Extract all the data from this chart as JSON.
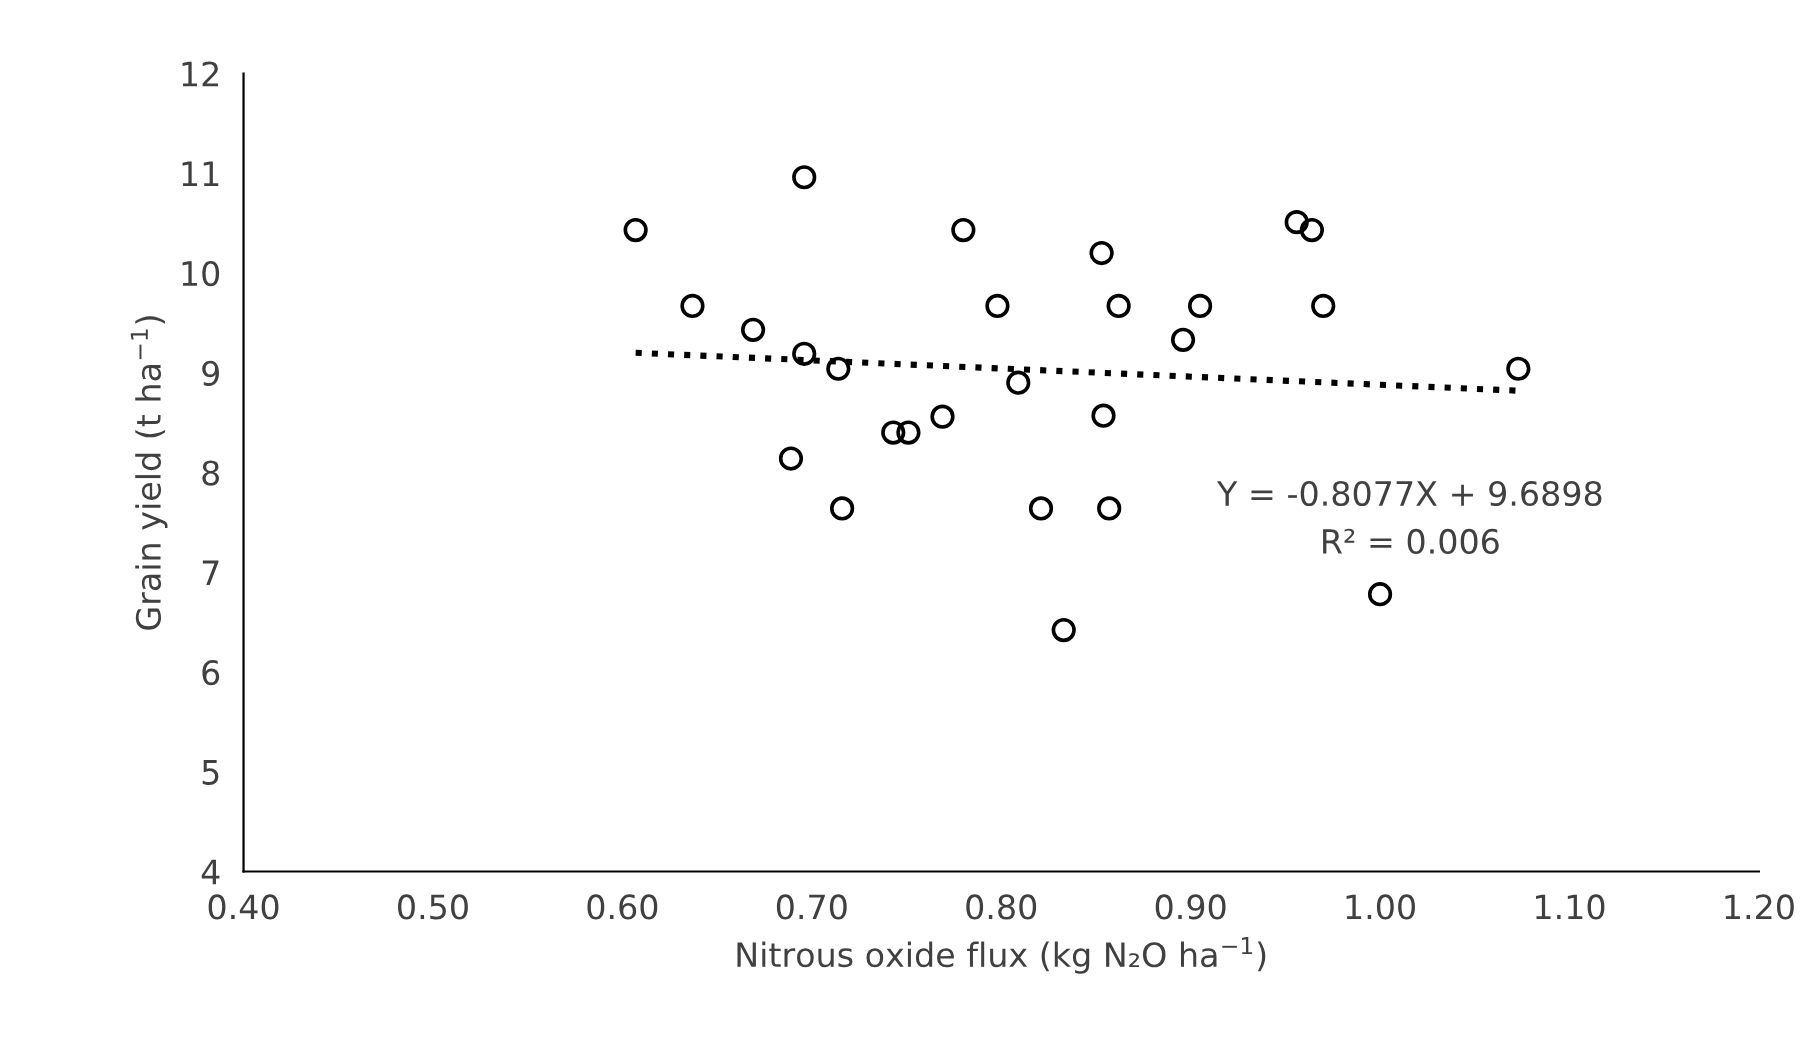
{
  "chart_data": {
    "type": "scatter",
    "xlabel": "Nitrous oxide flux (kg N₂O ha$^{−1}$)",
    "ylabel": "Grain yield (t ha$^{−1}$)",
    "xlim": [
      0.4,
      1.2
    ],
    "xticks": [
      {
        "value": 0.4,
        "label": "0.40"
      },
      {
        "value": 0.5,
        "label": "0.50"
      },
      {
        "value": 0.6,
        "label": "0.60"
      },
      {
        "value": 0.7,
        "label": "0.70"
      },
      {
        "value": 0.8,
        "label": "0.80"
      },
      {
        "value": 0.9,
        "label": "0.90"
      },
      {
        "value": 1.0,
        "label": "1.00"
      },
      {
        "value": 1.1,
        "label": "1.10"
      },
      {
        "value": 1.2,
        "label": "1.20"
      }
    ],
    "ylim": [
      4,
      12
    ],
    "yticks": [
      4,
      5,
      6,
      7,
      8,
      9,
      10,
      11,
      12
    ],
    "grid": false,
    "legend": false,
    "marker": "circle",
    "annotations": [
      "Y = -0.8077X + 9.6898",
      "R² = 0.006"
    ],
    "series": [
      {
        "color": "#000000",
        "x": [
          0.607,
          0.637,
          0.669,
          0.696,
          0.696,
          0.689,
          0.714,
          0.716,
          0.743,
          0.751,
          0.769,
          0.78,
          0.798,
          0.809,
          0.821,
          0.833,
          0.853,
          0.862,
          0.854,
          0.857,
          0.896,
          0.905,
          0.956,
          0.964,
          0.97,
          1.0,
          1.073
        ],
        "values": [
          10.43,
          9.67,
          9.43,
          10.96,
          9.19,
          8.14,
          9.04,
          7.64,
          8.4,
          8.4,
          8.56,
          10.43,
          9.67,
          8.9,
          7.64,
          6.42,
          10.2,
          9.67,
          8.57,
          7.64,
          9.33,
          9.67,
          10.51,
          10.43,
          9.67,
          6.78,
          9.04
        ]
      },
      {
        "type": "line",
        "color": "#000000",
        "line_style": "dotted",
        "marker": "none",
        "x": [
          0.607,
          1.073
        ],
        "values": [
          9.2,
          8.82
        ]
      }
    ]
  }
}
